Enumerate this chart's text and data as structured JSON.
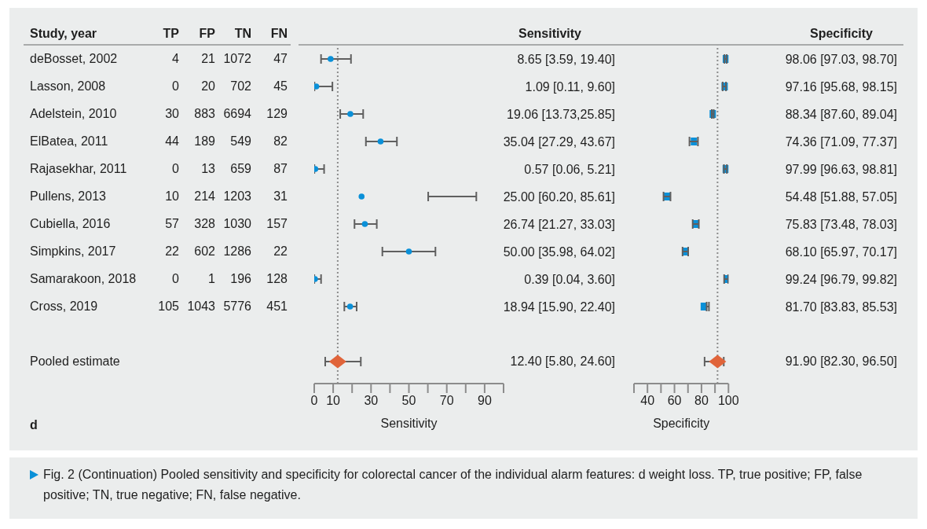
{
  "chart_data": [
    {
      "type": "other",
      "ylabel": "Study, year",
      "categories": [
        "deBosset, 2002",
        "Lasson, 2008",
        "Adelstein, 2010",
        "ElBatea, 2011",
        "Rajasekhar, 2011",
        "Pullens, 2013",
        "Cubiella, 2016",
        "Simpkins, 2017",
        "Samarakoon, 2018",
        "Cross, 2019",
        null,
        "Pooled estimate"
      ],
      "series": [
        {
          "name": "TP",
          "values": [
            4,
            0,
            30,
            44,
            0,
            10,
            57,
            22,
            0,
            105,
            null,
            null
          ]
        },
        {
          "name": "FP",
          "values": [
            21,
            20,
            883,
            189,
            13,
            214,
            328,
            602,
            1,
            1043,
            null,
            null
          ]
        },
        {
          "name": "TN",
          "values": [
            1072,
            702,
            6694,
            549,
            659,
            1203,
            1030,
            1286,
            196,
            5776,
            null,
            null
          ]
        },
        {
          "name": "FN",
          "values": [
            47,
            45,
            129,
            82,
            87,
            31,
            157,
            22,
            128,
            451,
            null,
            null
          ]
        }
      ],
      "data_labels": true,
      "annotations": [
        "d",
        "Fig. 2 (Continuation) Pooled sensitivity and specificity for colorectal cancer of the individual alarm features: d weight loss. TP, true positive; FP, false positive; TN, true negative; FN, false negative."
      ]
    },
    {
      "type": "scatter",
      "xlabel": "Sensitivity",
      "orientation": "horizontal",
      "tick_labels": "x",
      "annotations": [
        "Sensitivity",
        "12.40 [5.80, 24.60]"
      ],
      "categories": [
        null,
        null,
        null,
        null,
        null,
        null,
        null,
        null,
        null,
        null,
        null,
        null
      ],
      "xlim": [
        0,
        100
      ],
      "xticks": [
        0,
        10,
        {
          "value": 20,
          "label": null
        },
        30,
        {
          "value": 40,
          "label": null
        },
        50,
        {
          "value": 60,
          "label": null
        },
        70,
        {
          "value": 80,
          "label": null
        },
        90,
        {
          "value": 100,
          "label": null
        }
      ],
      "ref_lines": [
        {
          "axis": "x",
          "value": 12.4,
          "color": "#8c8c8c",
          "line_style": "dotted"
        }
      ],
      "series": [
        {
          "color": "#0a90d8",
          "marker": "circle",
          "values": [
            8.65,
            1.09,
            19.06,
            35.04,
            0.57,
            25.0,
            26.74,
            50.0,
            0.39,
            18.94,
            null,
            null
          ],
          "errors": [
            [
              3.59,
              19.4
            ],
            [
              0.11,
              9.6
            ],
            [
              13.73,
              25.85
            ],
            [
              27.29,
              43.67
            ],
            [
              0.06,
              5.21
            ],
            [
              60.2,
              85.61
            ],
            [
              21.27,
              33.03
            ],
            [
              35.98,
              64.02
            ],
            [
              0.04,
              3.6
            ],
            [
              15.9,
              22.4
            ],
            null,
            null
          ],
          "value_labels": [
            "8.65 [3.59, 19.40]",
            "1.09 [0.11, 9.60]",
            "19.06 [13.73,25.85]",
            "35.04 [27.29, 43.67]",
            "0.57 [0.06, 5.21]",
            "25.00 [60.20, 85.61]",
            "26.74 [21.27, 33.03]",
            "50.00 [35.98, 64.02]",
            "0.39 [0.04, 3.60]",
            "18.94 [15.90, 22.40]",
            null,
            null
          ]
        },
        {
          "color": "#e0643a",
          "marker": "diamond",
          "values": [
            null,
            null,
            null,
            null,
            null,
            null,
            null,
            null,
            null,
            null,
            null,
            12.4
          ],
          "errors": [
            null,
            null,
            null,
            null,
            null,
            null,
            null,
            null,
            null,
            null,
            null,
            [
              5.8,
              24.6
            ]
          ]
        }
      ]
    },
    {
      "type": "scatter",
      "xlabel": "Specificity",
      "orientation": "horizontal",
      "tick_labels": "x",
      "annotations": [
        "Specificity",
        "91.90 [82.30, 96.50]"
      ],
      "categories": [
        null,
        null,
        null,
        null,
        null,
        null,
        null,
        null,
        null,
        null,
        null,
        null
      ],
      "xlim": [
        30,
        100
      ],
      "xticks": [
        {
          "value": 30,
          "label": null
        },
        40,
        {
          "value": 50,
          "label": null
        },
        60,
        {
          "value": 70,
          "label": null
        },
        80,
        {
          "value": 90,
          "label": null
        },
        100
      ],
      "ref_lines": [
        {
          "axis": "x",
          "value": 91.9,
          "color": "#8c8c8c",
          "line_style": "dotted"
        }
      ],
      "series": [
        {
          "color": "#0a90d8",
          "marker": "square",
          "values": [
            98.06,
            97.16,
            88.34,
            74.36,
            97.99,
            54.48,
            75.83,
            68.1,
            99.24,
            81.7,
            null,
            null
          ],
          "errors": [
            [
              97.03,
              98.7
            ],
            [
              95.68,
              98.15
            ],
            [
              87.6,
              89.04
            ],
            [
              71.09,
              77.37
            ],
            [
              96.63,
              98.81
            ],
            [
              51.88,
              57.05
            ],
            [
              73.48,
              78.03
            ],
            [
              65.97,
              70.17
            ],
            [
              96.79,
              99.82
            ],
            [
              83.83,
              85.53
            ],
            null,
            null
          ],
          "value_labels": [
            "98.06 [97.03, 98.70]",
            "97.16 [95.68, 98.15]",
            "88.34 [87.60, 89.04]",
            "74.36 [71.09, 77.37]",
            "97.99 [96.63, 98.81]",
            "54.48 [51.88, 57.05]",
            "75.83 [73.48, 78.03]",
            "68.10 [65.97, 70.17]",
            "99.24 [96.79, 99.82]",
            "81.70 [83.83, 85.53]",
            null,
            null
          ]
        },
        {
          "color": "#e0643a",
          "marker": "diamond",
          "values": [
            null,
            null,
            null,
            null,
            null,
            null,
            null,
            null,
            null,
            null,
            null,
            91.9
          ],
          "errors": [
            null,
            null,
            null,
            null,
            null,
            null,
            null,
            null,
            null,
            null,
            null,
            [
              82.3,
              96.5
            ]
          ]
        }
      ]
    }
  ]
}
